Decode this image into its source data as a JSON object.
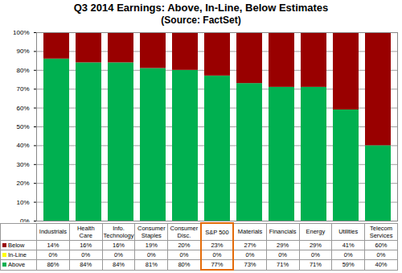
{
  "chart_data": {
    "type": "bar",
    "stacked": true,
    "title": "Q3 2014 Earnings: Above, In-Line, Below Estimates",
    "subtitle": "(Source: FactSet)",
    "categories": [
      "Industrials",
      "Health Care",
      "Info. Technology",
      "Consumer Staples",
      "Consumer Disc.",
      "S&P 500",
      "Materials",
      "Financials",
      "Energy",
      "Utilities",
      "Telecom Services"
    ],
    "series": [
      {
        "name": "Below",
        "color": "#990000",
        "values": [
          14,
          16,
          16,
          19,
          20,
          23,
          27,
          29,
          29,
          41,
          60
        ],
        "value_labels": [
          "14%",
          "16%",
          "16%",
          "19%",
          "20%",
          "23%",
          "27%",
          "29%",
          "29%",
          "41%",
          "60%"
        ]
      },
      {
        "name": "In-Line",
        "color": "#ffff00",
        "values": [
          0,
          0,
          0,
          0,
          0,
          0,
          0,
          0,
          0,
          0,
          0
        ],
        "value_labels": [
          "0%",
          "0%",
          "0%",
          "0%",
          "0%",
          "0%",
          "0%",
          "0%",
          "0%",
          "0%",
          "0%"
        ]
      },
      {
        "name": "Above",
        "color": "#00b050",
        "values": [
          86,
          84,
          84,
          81,
          80,
          77,
          73,
          71,
          71,
          59,
          40
        ],
        "value_labels": [
          "86%",
          "84%",
          "84%",
          "81%",
          "80%",
          "77%",
          "73%",
          "71%",
          "71%",
          "59%",
          "40%"
        ]
      }
    ],
    "ylim": [
      0,
      100
    ],
    "yticks": [
      {
        "value": 0,
        "label": "0%"
      },
      {
        "value": 10,
        "label": "10%"
      },
      {
        "value": 20,
        "label": "20%"
      },
      {
        "value": 30,
        "label": "30%"
      },
      {
        "value": 40,
        "label": "40%"
      },
      {
        "value": 50,
        "label": "50%"
      },
      {
        "value": 60,
        "label": "60%"
      },
      {
        "value": 70,
        "label": "70%"
      },
      {
        "value": 80,
        "label": "80%"
      },
      {
        "value": 90,
        "label": "90%"
      },
      {
        "value": 100,
        "label": "100%"
      }
    ],
    "grid": true,
    "data_labels": true
  }
}
